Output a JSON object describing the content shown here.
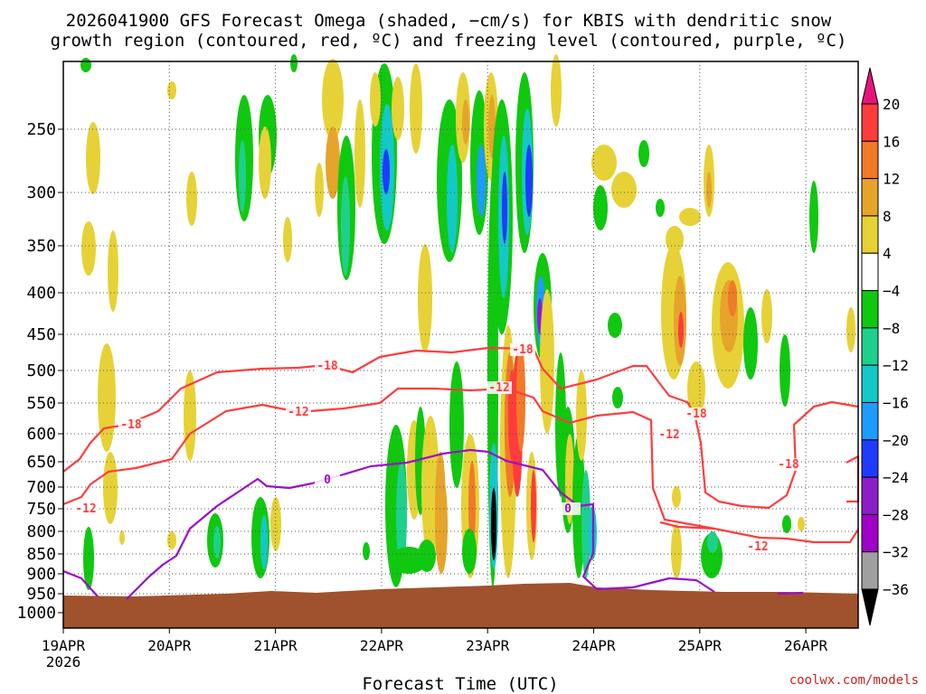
{
  "chart_data": {
    "type": "heatmap",
    "title": "2026041900 GFS Forecast Omega (shaded, −cm/s) for KBIS with dendritic snow",
    "subtitle": "growth region (contoured, red, ºC) and freezing level (contoured, purple, ºC)",
    "xlabel": "Forecast Time (UTC)",
    "ylabel": "",
    "x_ticks": [
      "19APR",
      "20APR",
      "21APR",
      "22APR",
      "23APR",
      "24APR",
      "25APR",
      "26APR"
    ],
    "x_year": "2026",
    "y_ticks": [
      "250",
      "300",
      "350",
      "400",
      "450",
      "500",
      "550",
      "600",
      "650",
      "700",
      "750",
      "800",
      "850",
      "900",
      "950",
      "1000"
    ],
    "y_tick_values": [
      250,
      300,
      350,
      400,
      450,
      500,
      550,
      600,
      650,
      700,
      750,
      800,
      850,
      900,
      950,
      1000
    ],
    "y_range": [
      200,
      1000
    ],
    "x_range_days": [
      0,
      7.5
    ],
    "colorbar": {
      "labels": [
        "20",
        "16",
        "12",
        "8",
        "4",
        "−4",
        "−8",
        "−12",
        "−16",
        "−20",
        "−24",
        "−28",
        "−32",
        "−36"
      ],
      "colors": [
        "#ff3c3c",
        "#f07a28",
        "#e6a42a",
        "#e6d236",
        "#ffffff",
        "#10c810",
        "#1fd08c",
        "#14c8c8",
        "#1e9bff",
        "#1e3cff",
        "#8c1ec8",
        "#a000c8",
        "#a0a0a0"
      ],
      "top_arrow_color": "#e6147a",
      "bottom_arrow_color": "#000000"
    },
    "contours": {
      "dgz_red_label_values": [
        "-18",
        "-18",
        "-18",
        "-18",
        "-18",
        "-12",
        "-12",
        "-12",
        "-12",
        "-12"
      ],
      "freezing_purple_label_values": [
        "0",
        "0"
      ]
    },
    "ground_color": "#a0522d",
    "credit": "coolwx.com/models"
  }
}
